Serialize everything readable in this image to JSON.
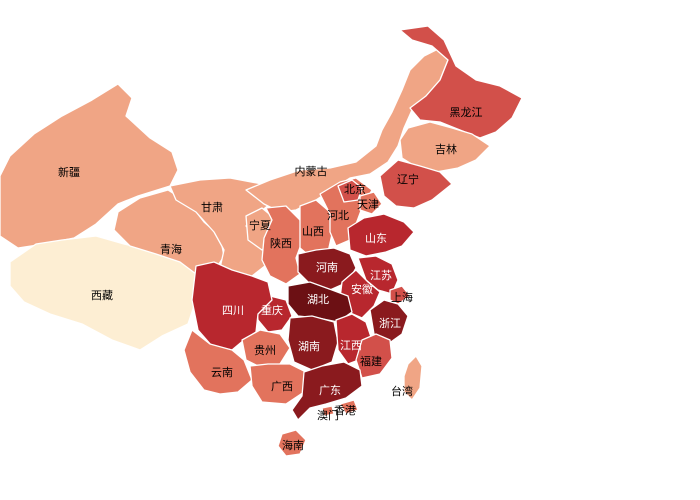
{
  "chart_data": {
    "type": "choropleth",
    "title": "",
    "legend": "none",
    "colors": {
      "level0": "#fdeed3",
      "level1": "#f0a585",
      "level2": "#e2735d",
      "level3": "#d2504a",
      "level4": "#b8272e",
      "level5": "#8a1a1e",
      "level6": "#6c1014"
    },
    "regions": [
      {
        "id": "xinjiang",
        "label": "新疆",
        "level": 1
      },
      {
        "id": "xizang",
        "label": "西藏",
        "level": 0
      },
      {
        "id": "qinghai",
        "label": "青海",
        "level": 1
      },
      {
        "id": "gansu",
        "label": "甘肃",
        "level": 1
      },
      {
        "id": "neimenggu",
        "label": "内蒙古",
        "level": 1
      },
      {
        "id": "heilongjiang",
        "label": "黑龙江",
        "level": 3
      },
      {
        "id": "jilin",
        "label": "吉林",
        "level": 1
      },
      {
        "id": "liaoning",
        "label": "辽宁",
        "level": 3
      },
      {
        "id": "ningxia",
        "label": "宁夏",
        "level": 1
      },
      {
        "id": "shaanxi",
        "label": "陕西",
        "level": 2
      },
      {
        "id": "shanxi",
        "label": "山西",
        "level": 2
      },
      {
        "id": "hebei",
        "label": "河北",
        "level": 2
      },
      {
        "id": "beijing",
        "label": "北京",
        "level": 3
      },
      {
        "id": "tianjin",
        "label": "天津",
        "level": 2
      },
      {
        "id": "shandong",
        "label": "山东",
        "level": 4
      },
      {
        "id": "henan",
        "label": "河南",
        "level": 5
      },
      {
        "id": "jiangsu",
        "label": "江苏",
        "level": 4
      },
      {
        "id": "anhui",
        "label": "安徽",
        "level": 4
      },
      {
        "id": "shanghai",
        "label": "上海",
        "level": 3
      },
      {
        "id": "zhejiang",
        "label": "浙江",
        "level": 5
      },
      {
        "id": "hubei",
        "label": "湖北",
        "level": 6
      },
      {
        "id": "chongqing",
        "label": "重庆",
        "level": 4
      },
      {
        "id": "sichuan",
        "label": "四川",
        "level": 4
      },
      {
        "id": "guizhou",
        "label": "贵州",
        "level": 2
      },
      {
        "id": "hunan",
        "label": "湖南",
        "level": 5
      },
      {
        "id": "jiangxi",
        "label": "江西",
        "level": 4
      },
      {
        "id": "fujian",
        "label": "福建",
        "level": 3
      },
      {
        "id": "yunnan",
        "label": "云南",
        "level": 2
      },
      {
        "id": "guangxi",
        "label": "广西",
        "level": 2
      },
      {
        "id": "guangdong",
        "label": "广东",
        "level": 5
      },
      {
        "id": "xianggang",
        "label": "香港",
        "level": 2
      },
      {
        "id": "aomen",
        "label": "澳门",
        "level": 2
      },
      {
        "id": "taiwan",
        "label": "台湾",
        "level": 1
      },
      {
        "id": "hainan",
        "label": "海南",
        "level": 2
      }
    ]
  }
}
